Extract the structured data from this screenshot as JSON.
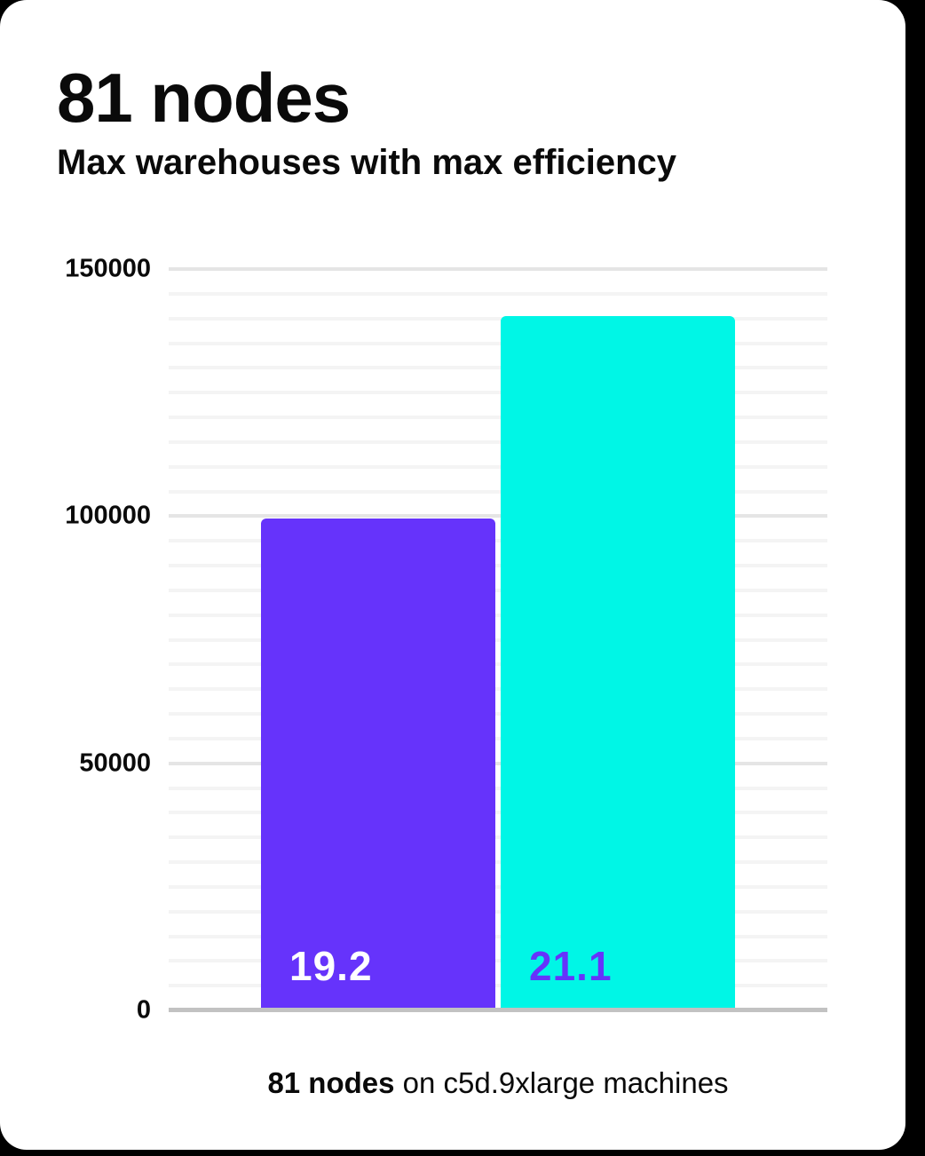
{
  "canvas": {
    "background": "#000000"
  },
  "card": {
    "background": "#ffffff"
  },
  "header": {
    "title": "81 nodes",
    "subtitle": "Max warehouses with max efficiency"
  },
  "caption": {
    "bold": "81 nodes",
    "rest": " on c5d.9xlarge machines"
  },
  "colors": {
    "bar_purple": "#6633FB",
    "bar_cyan": "#00F6E6",
    "grid_minor": "#f4f4f4",
    "grid_major": "#e5e5e5",
    "axis_line": "#c2c2c2",
    "text": "#0a0a0a"
  },
  "chart_data": {
    "type": "bar",
    "title": "81 nodes",
    "subtitle": "Max warehouses with max efficiency",
    "caption": "81 nodes on c5d.9xlarge machines",
    "values": [
      99000,
      140000
    ],
    "bar_labels": [
      "19.2",
      "21.1"
    ],
    "bar_colors": [
      "#6633FB",
      "#00F6E6"
    ],
    "bar_label_colors": [
      "#ffffff",
      "#6633FB"
    ],
    "xlabel": "",
    "ylabel": "",
    "ylim": [
      0,
      150000
    ],
    "yticks": [
      "150000",
      "100000",
      "50000",
      "0"
    ],
    "minor_gridline_step": 5000,
    "major_gridline_step": 50000,
    "grid": "horizontal-only",
    "legend_position": "none"
  }
}
